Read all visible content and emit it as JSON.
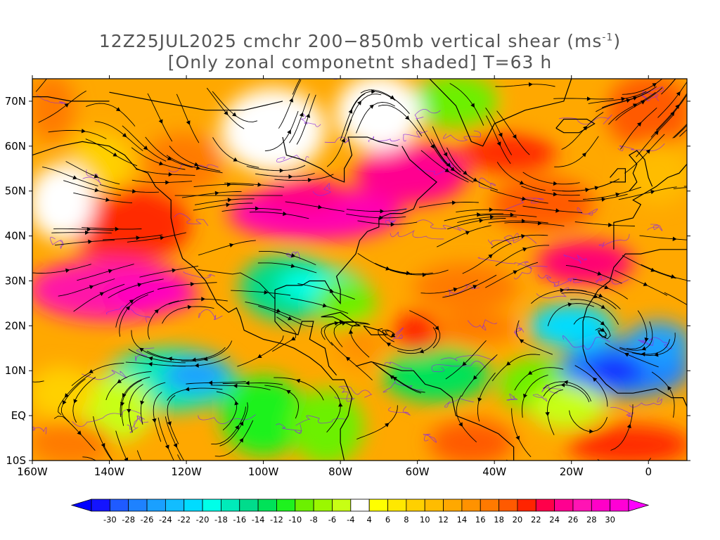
{
  "title": {
    "line1_main": "12Z25JUL2025 cmchr 200−850mb vertical shear (ms",
    "line1_sup": "-1",
    "line1_end": ")",
    "line2": "[Only zonal componetnt shaded] T=63 h"
  },
  "map": {
    "lon_range": [
      -160,
      10
    ],
    "lat_range": [
      -10,
      75
    ],
    "lat_ticks": [
      {
        "value": 70,
        "label": "70N"
      },
      {
        "value": 60,
        "label": "60N"
      },
      {
        "value": 50,
        "label": "50N"
      },
      {
        "value": 40,
        "label": "40N"
      },
      {
        "value": 30,
        "label": "30N"
      },
      {
        "value": 20,
        "label": "20N"
      },
      {
        "value": 10,
        "label": "10N"
      },
      {
        "value": 0,
        "label": "EQ"
      },
      {
        "value": -10,
        "label": "10S"
      }
    ],
    "lon_ticks": [
      {
        "value": -160,
        "label": "160W"
      },
      {
        "value": -140,
        "label": "140W"
      },
      {
        "value": -120,
        "label": "120W"
      },
      {
        "value": -100,
        "label": "100W"
      },
      {
        "value": -80,
        "label": "80W"
      },
      {
        "value": -60,
        "label": "60W"
      },
      {
        "value": -40,
        "label": "40W"
      },
      {
        "value": -20,
        "label": "20W"
      },
      {
        "value": 0,
        "label": "0"
      }
    ],
    "field": "zonal shear (m/s), shaded",
    "overlay": "shear streamlines with arrowheads; purple contours; coastlines and borders"
  },
  "colorbar": {
    "labels": [
      "-30",
      "-28",
      "-26",
      "-24",
      "-22",
      "-20",
      "-18",
      "-16",
      "-14",
      "-12",
      "-10",
      "-8",
      "-6",
      "-4",
      "4",
      "6",
      "8",
      "10",
      "12",
      "14",
      "16",
      "18",
      "20",
      "22",
      "24",
      "26",
      "28",
      "30"
    ],
    "colors": [
      "#1414ff",
      "#1f5bff",
      "#1e82ff",
      "#1aa0ff",
      "#12bdff",
      "#00dcff",
      "#00ffe8",
      "#00ebba",
      "#00dc8c",
      "#00e258",
      "#1ef21e",
      "#6cf000",
      "#9bf700",
      "#c8ff14",
      "#ffffff",
      "#ffff00",
      "#ffe800",
      "#ffd000",
      "#ffbc00",
      "#ffa800",
      "#ff9200",
      "#ff7a00",
      "#ff5a00",
      "#ff2400",
      "#ff004a",
      "#ff0090",
      "#ff14b4",
      "#ff00c8",
      "#ff00d6"
    ],
    "under_color": "#0000ff",
    "over_color": "#ff00ff"
  }
}
